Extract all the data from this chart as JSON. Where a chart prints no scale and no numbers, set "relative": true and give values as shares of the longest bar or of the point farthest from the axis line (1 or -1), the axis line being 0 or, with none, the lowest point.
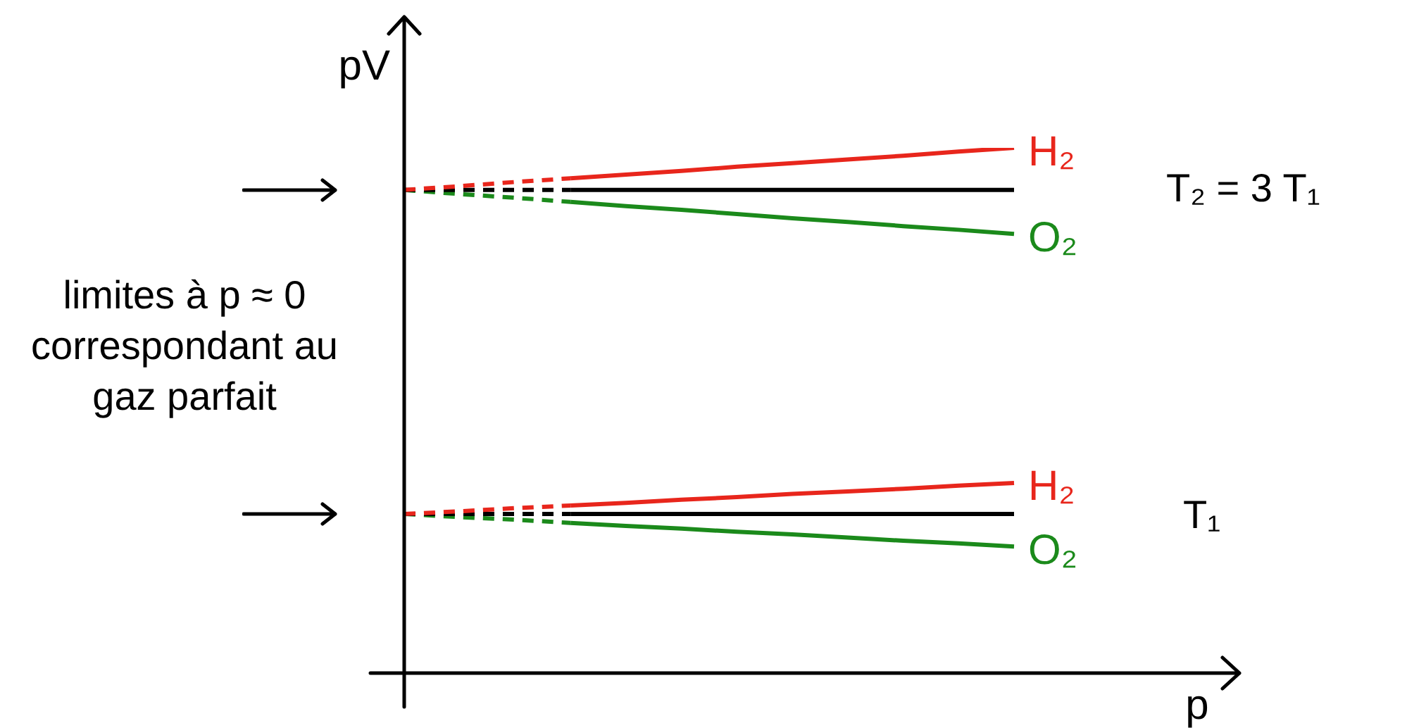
{
  "chart_data": {
    "type": "line",
    "relative": true,
    "xlabel": "p",
    "ylabel": "pV",
    "marker": "none",
    "grid": false,
    "legend": false,
    "categories": [
      null,
      null,
      null,
      null,
      null,
      null,
      null,
      null,
      null,
      null,
      null,
      null
    ],
    "annotations": [
      "T₂ = 3 T₁",
      "T₁",
      "limites à  p ≈ 0 correspondant au gaz parfait"
    ],
    "series": [
      {
        "color": "#e8261c",
        "line_style": "dashed",
        "values": [
          0.92,
          0.927,
          0.935,
          0.942,
          null,
          null,
          null,
          null,
          null,
          null,
          null,
          null
        ]
      },
      {
        "color": "#000000",
        "line_style": "dashed",
        "values": [
          0.92,
          0.92,
          0.92,
          0.92,
          null,
          null,
          null,
          null,
          null,
          null,
          null,
          null
        ]
      },
      {
        "color": "#1b8a1b",
        "line_style": "dashed",
        "values": [
          0.92,
          0.912,
          0.905,
          0.897,
          null,
          null,
          null,
          null,
          null,
          null,
          null,
          null
        ]
      },
      {
        "name": "H₂",
        "color": "#e8261c",
        "line_style": "solid",
        "values": [
          null,
          null,
          null,
          0.942,
          0.949,
          0.956,
          0.964,
          0.971,
          0.978,
          0.985,
          0.993,
          1.0
        ]
      },
      {
        "color": "#000000",
        "line_style": "solid",
        "values": [
          null,
          null,
          null,
          0.92,
          0.92,
          0.92,
          0.92,
          0.92,
          0.92,
          0.92,
          0.92,
          0.92
        ]
      },
      {
        "name": "O₂",
        "color": "#1b8a1b",
        "line_style": "solid",
        "values": [
          null,
          null,
          null,
          0.897,
          0.889,
          0.882,
          0.874,
          0.866,
          0.859,
          0.851,
          0.844,
          0.836
        ]
      },
      {
        "color": "#e8261c",
        "line_style": "dashed",
        "values": [
          0.303,
          0.308,
          0.314,
          0.319,
          null,
          null,
          null,
          null,
          null,
          null,
          null,
          null
        ]
      },
      {
        "color": "#000000",
        "line_style": "dashed",
        "values": [
          0.303,
          0.303,
          0.303,
          0.303,
          null,
          null,
          null,
          null,
          null,
          null,
          null,
          null
        ]
      },
      {
        "color": "#1b8a1b",
        "line_style": "dashed",
        "values": [
          0.303,
          0.297,
          0.292,
          0.286,
          null,
          null,
          null,
          null,
          null,
          null,
          null,
          null
        ]
      },
      {
        "name": "H₂",
        "color": "#e8261c",
        "line_style": "solid",
        "values": [
          null,
          null,
          null,
          0.319,
          0.324,
          0.33,
          0.335,
          0.341,
          0.346,
          0.351,
          0.357,
          0.362
        ]
      },
      {
        "color": "#000000",
        "line_style": "solid",
        "values": [
          null,
          null,
          null,
          0.303,
          0.303,
          0.303,
          0.303,
          0.303,
          0.303,
          0.303,
          0.303,
          0.303
        ]
      },
      {
        "name": "O₂",
        "color": "#1b8a1b",
        "line_style": "solid",
        "values": [
          null,
          null,
          null,
          0.286,
          0.28,
          0.275,
          0.269,
          0.264,
          0.258,
          0.252,
          0.247,
          0.241
        ]
      }
    ]
  }
}
